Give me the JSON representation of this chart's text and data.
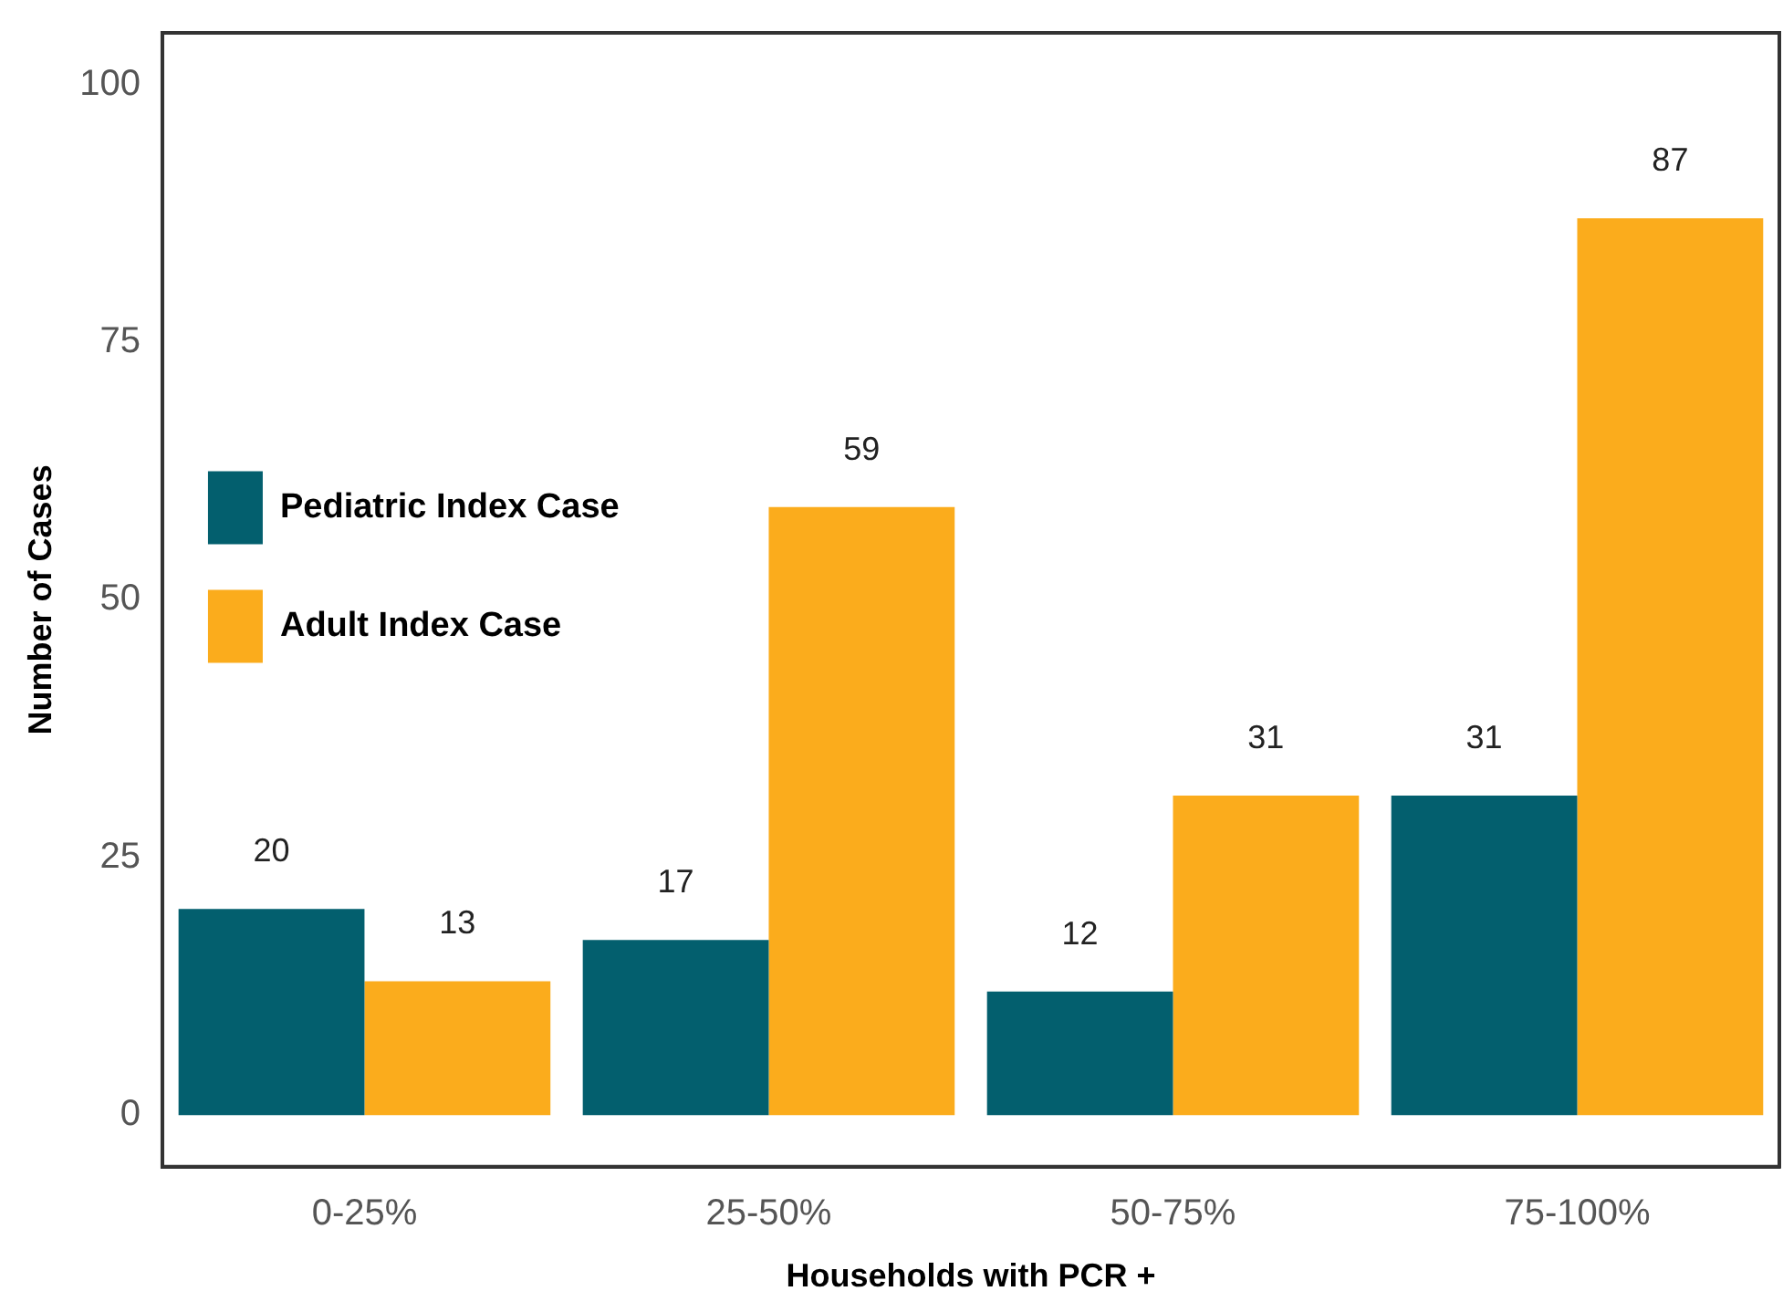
{
  "chart_data": {
    "type": "bar",
    "xlabel": "Households with PCR +",
    "ylabel": "Number of Cases",
    "categories": [
      "0-25%",
      "25-50%",
      "50-75%",
      "75-100%"
    ],
    "series": [
      {
        "name": "Pediatric Index Case",
        "color": "#035f6e",
        "values": [
          20,
          17,
          12,
          31
        ]
      },
      {
        "name": "Adult Index Case",
        "color": "#fbac1c",
        "values": [
          13,
          59,
          31,
          87
        ]
      }
    ],
    "ylim": [
      -5,
      105
    ],
    "yticks": [
      0,
      25,
      50,
      75,
      100
    ],
    "grid": false,
    "legend": "top",
    "data_labels": true
  }
}
